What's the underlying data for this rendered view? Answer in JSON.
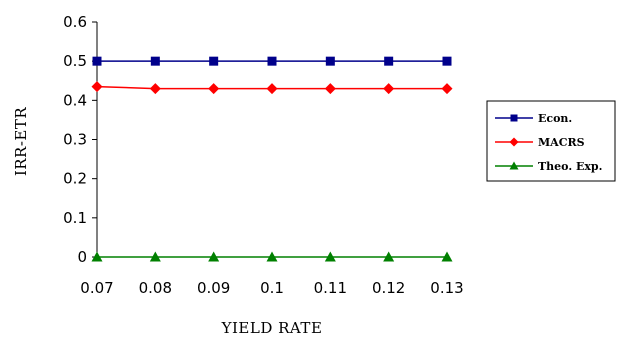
{
  "chart_data": {
    "type": "line",
    "title": "",
    "xlabel": "YIELD RATE",
    "ylabel": "IRR-ETR",
    "x": [
      0.07,
      0.08,
      0.09,
      0.1,
      0.11,
      0.12,
      0.13
    ],
    "x_tick_labels": [
      "0.07",
      "0.08",
      "0.09",
      "0.1",
      "0.11",
      "0.12",
      "0.13"
    ],
    "y_tick_labels": [
      "0",
      "0.1",
      "0.2",
      "0.3",
      "0.4",
      "0.5",
      "0.6"
    ],
    "ylim": [
      0,
      0.6
    ],
    "grid": false,
    "legend_position": "right",
    "series": [
      {
        "name": "Econ.",
        "color": "#00008b",
        "marker": "square",
        "values": [
          0.5,
          0.5,
          0.5,
          0.5,
          0.5,
          0.5,
          0.5
        ]
      },
      {
        "name": "MACRS",
        "color": "#ff0000",
        "marker": "diamond",
        "values": [
          0.435,
          0.43,
          0.43,
          0.43,
          0.43,
          0.43,
          0.43
        ]
      },
      {
        "name": "Theo. Exp.",
        "color": "#008000",
        "marker": "triangle",
        "values": [
          0,
          0,
          0,
          0,
          0,
          0,
          0
        ]
      }
    ]
  }
}
